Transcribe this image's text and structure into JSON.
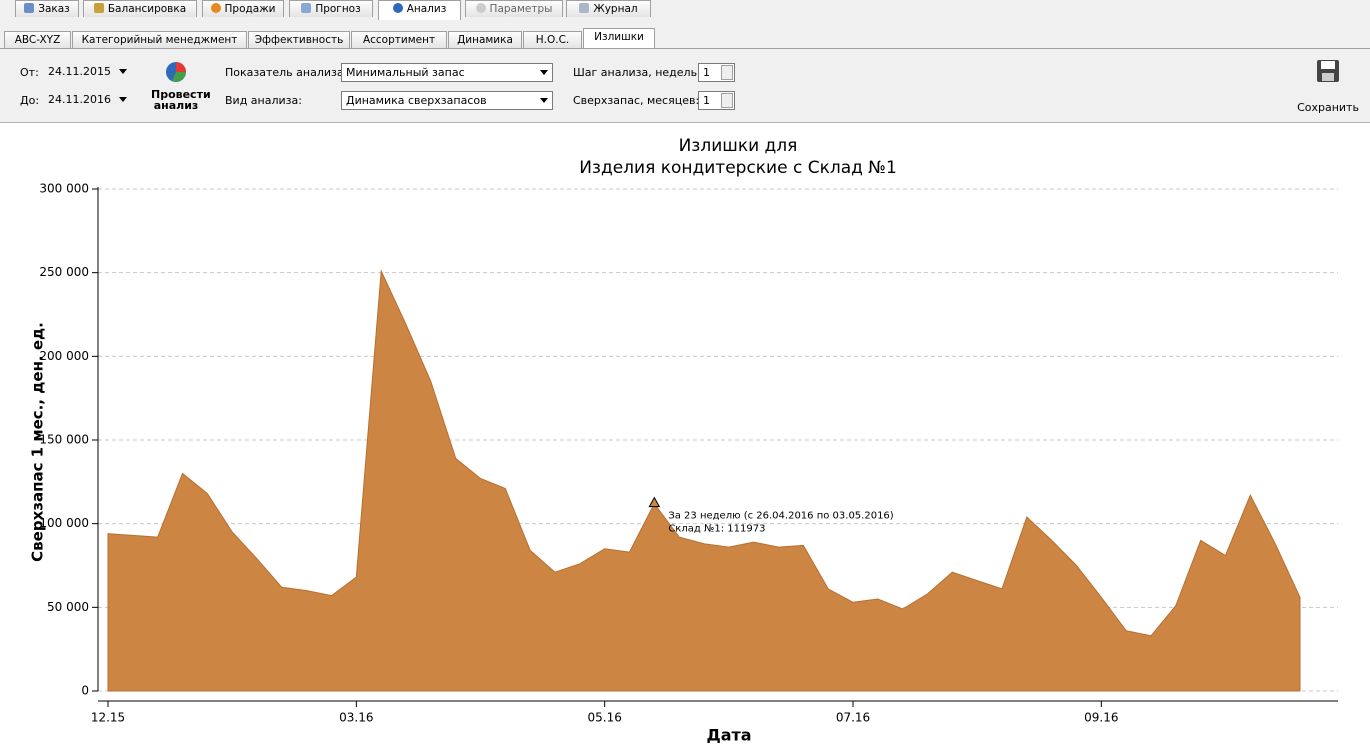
{
  "tabs": [
    "Заказ",
    "Балансировка",
    "Продажи",
    "Прогноз",
    "Анализ",
    "Параметры",
    "Журнал"
  ],
  "subtabs": [
    "ABC-XYZ",
    "Категорийный менеджмент",
    "Эффективность",
    "Ассортимент",
    "Динамика",
    "Н.О.С.",
    "Излишки"
  ],
  "toolbar": {
    "from_label": "От:",
    "from_value": "24.11.2015",
    "to_label": "До:",
    "to_value": "24.11.2016",
    "run_button": "Провести анализ",
    "metric_label": "Показатель анализа:",
    "metric_value": "Минимальный запас",
    "kind_label": "Вид анализа:",
    "kind_value": "Динамика сверхзапасов",
    "step_label": "Шаг анализа, недель:",
    "step_value": "1",
    "months_label": "Сверхзапас, месяцев:",
    "months_value": "1",
    "save": "Сохранить"
  },
  "chart_data": {
    "type": "area",
    "title": "Излишки для",
    "subtitle": "Изделия кондитерские с Склад №1",
    "y_label": "Сверхзапас 1 мес., ден. ед.",
    "x_label": "Дата",
    "categories": [
      "12.15",
      null,
      null,
      null,
      null,
      null,
      null,
      null,
      null,
      null,
      "03.16",
      null,
      null,
      null,
      null,
      null,
      null,
      null,
      null,
      null,
      "05.16",
      null,
      null,
      null,
      null,
      null,
      null,
      null,
      null,
      null,
      "07.16",
      null,
      null,
      null,
      null,
      null,
      null,
      null,
      null,
      null,
      "09.16",
      null,
      null,
      null,
      null,
      null,
      null,
      null,
      null
    ],
    "series": [
      {
        "name": "Склад №1",
        "color": "#cd8544",
        "values": [
          94000,
          93000,
          92000,
          130000,
          118000,
          95000,
          79000,
          62000,
          60000,
          57000,
          68000,
          251000,
          219000,
          185000,
          139000,
          127000,
          121000,
          84000,
          71000,
          76000,
          85000,
          83000,
          111973,
          92000,
          88000,
          86000,
          89000,
          86000,
          87000,
          61000,
          53000,
          55000,
          49000,
          58000,
          71000,
          66000,
          61000,
          104000,
          90000,
          75000,
          56000,
          36000,
          33000,
          51000,
          90000,
          81000,
          117000,
          88000,
          56000
        ]
      }
    ],
    "ylim": [
      0,
      300000
    ],
    "yticks": [
      0,
      {
        "value": 50000,
        "label": "50 000"
      },
      {
        "value": 100000,
        "label": "100 000"
      },
      {
        "value": 150000,
        "label": "150 000"
      },
      {
        "value": 200000,
        "label": "200 000"
      },
      {
        "value": 250000,
        "label": "250 000"
      },
      {
        "value": 300000,
        "label": "300 000"
      }
    ],
    "grid": true,
    "annotation": [
      "За 23 неделю (с 26.04.2016 по 03.05.2016)",
      "Склад №1: 111973"
    ]
  }
}
